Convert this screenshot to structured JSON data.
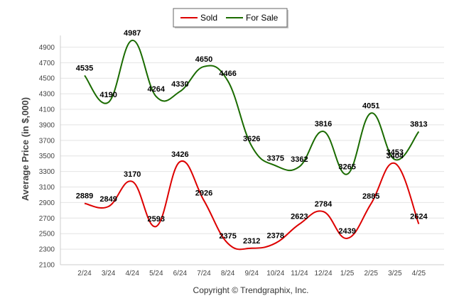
{
  "chart_data": {
    "type": "line",
    "categories": [
      "2/24",
      "3/24",
      "4/24",
      "5/24",
      "6/24",
      "7/24",
      "8/24",
      "9/24",
      "10/24",
      "11/24",
      "12/24",
      "1/25",
      "2/25",
      "3/25",
      "4/25"
    ],
    "series": [
      {
        "name": "Sold",
        "color": "#dd0000",
        "values": [
          2889,
          2849,
          3170,
          2593,
          3426,
          2926,
          2375,
          2312,
          2378,
          2623,
          2784,
          2439,
          2885,
          3404,
          2624
        ]
      },
      {
        "name": "For Sale",
        "color": "#1a6b00",
        "values": [
          4535,
          4190,
          4987,
          4264,
          4330,
          4650,
          4466,
          3626,
          3375,
          3362,
          3816,
          3265,
          4051,
          3453,
          3813
        ]
      }
    ],
    "ylabel": "Average Price (in $,000)",
    "xlabel": "",
    "ylim": [
      2100,
      5050
    ],
    "yticks": [
      2100,
      2300,
      2500,
      2700,
      2900,
      3100,
      3300,
      3500,
      3700,
      3900,
      4100,
      4300,
      4500,
      4700,
      4900
    ],
    "grid": true,
    "legend": "top-center"
  },
  "copyright": "Copyright © Trendgraphix, Inc."
}
